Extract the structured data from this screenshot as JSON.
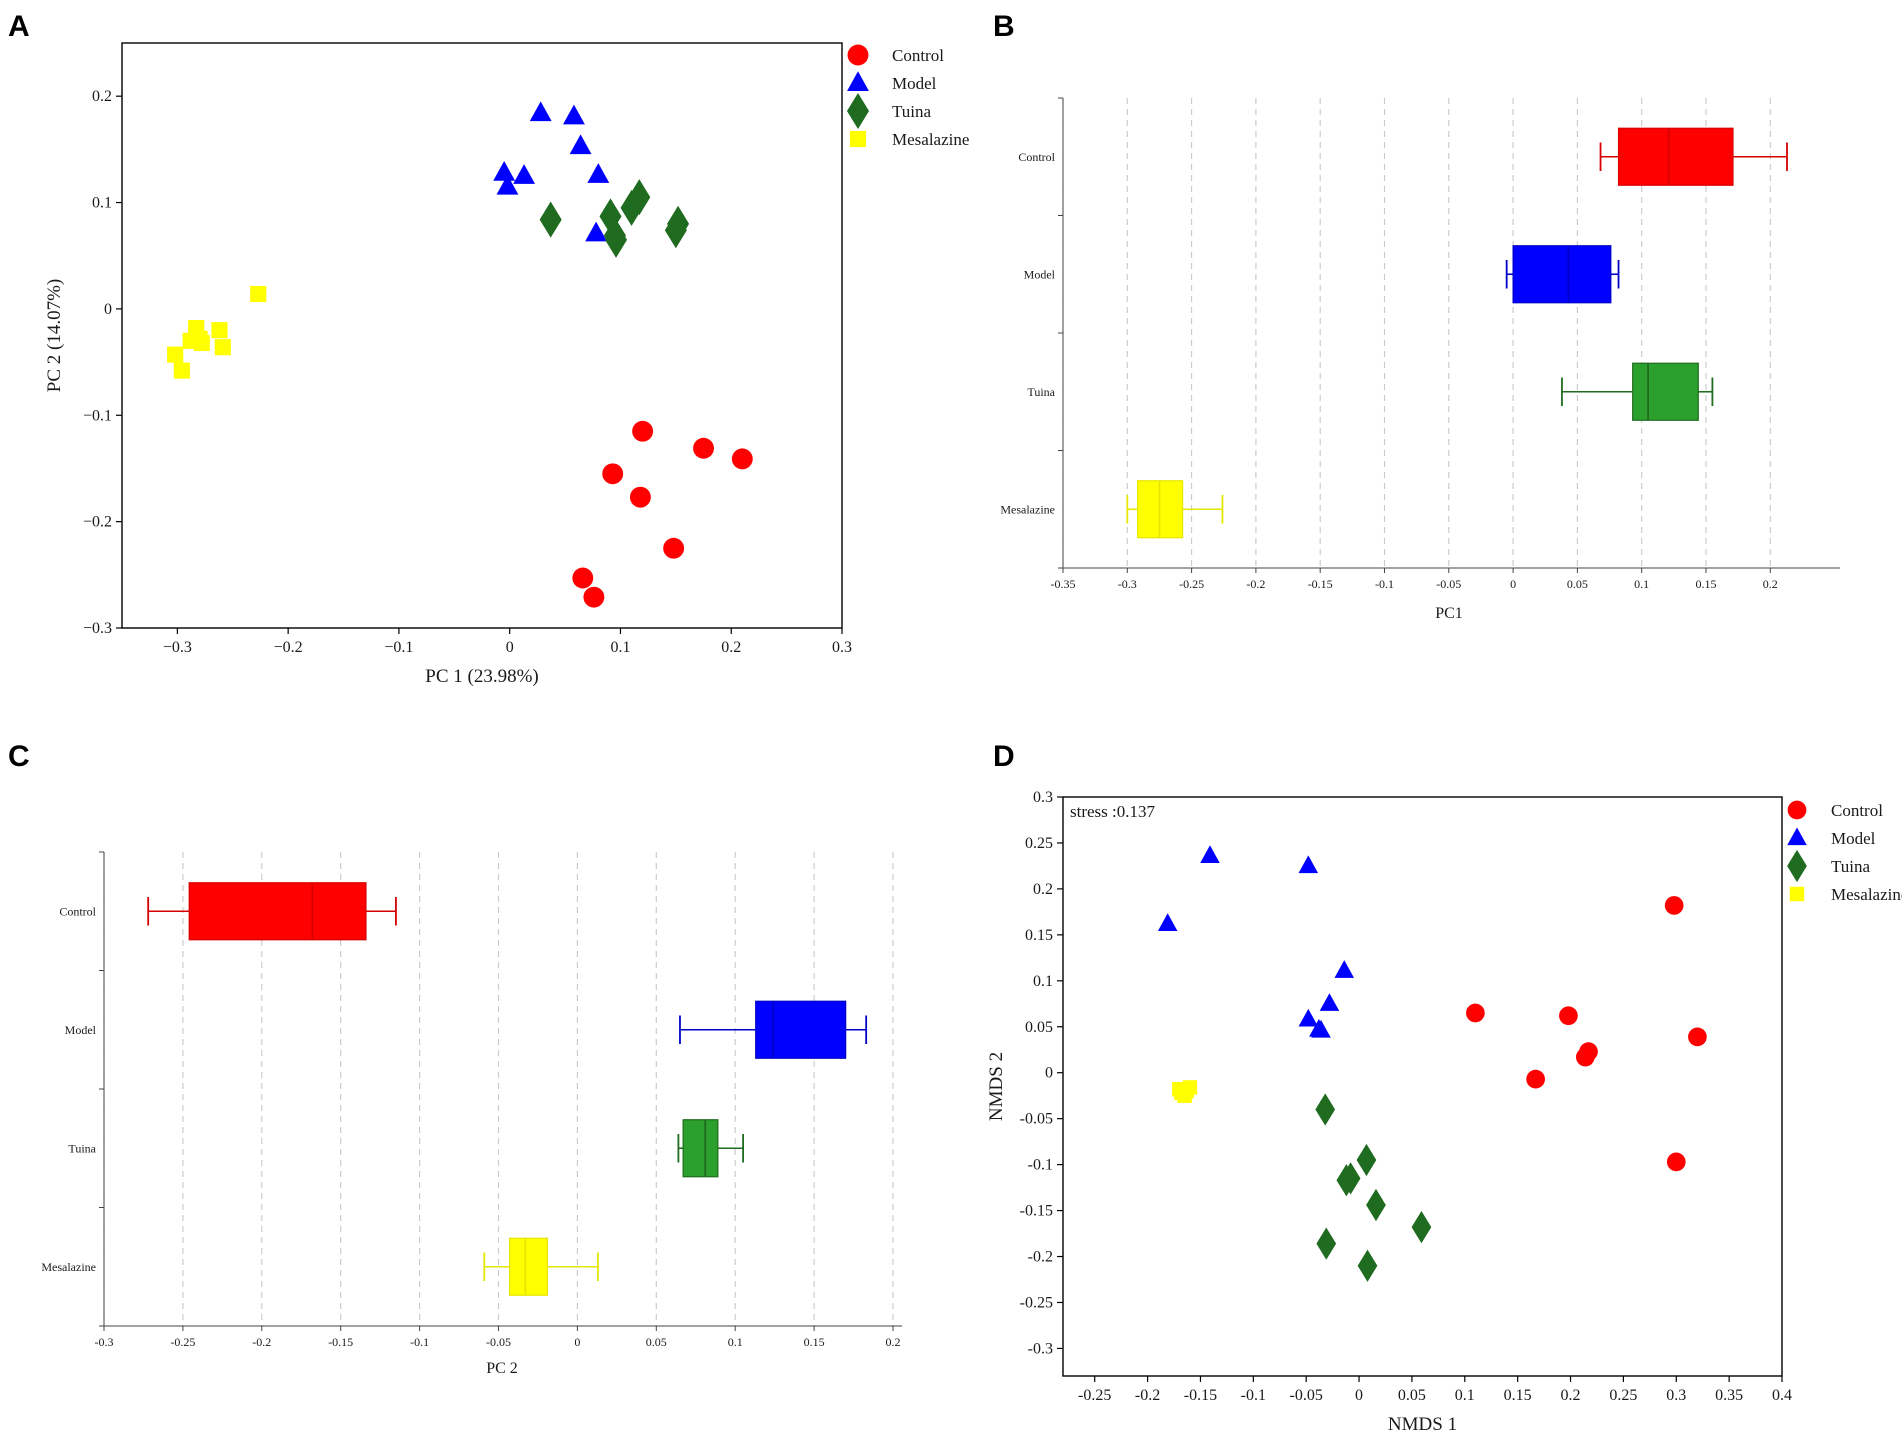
{
  "panels": {
    "A": "A",
    "B": "B",
    "C": "C",
    "D": "D"
  },
  "colors": {
    "Control": "#ff0000",
    "Model": "#0000ff",
    "Tuina": "#1f6b1f",
    "Mesalazine": "#ffff00",
    "box_Tuina": "#2ca02c"
  },
  "legend": [
    "Control",
    "Model",
    "Tuina",
    "Mesalazine"
  ],
  "chart_data": [
    {
      "id": "A",
      "type": "scatter",
      "title": "",
      "xlabel": "PC 1 (23.98%)",
      "ylabel": "PC 2 (14.07%)",
      "xlim": [
        -0.35,
        0.3
      ],
      "ylim": [
        -0.3,
        0.25
      ],
      "xticks": [
        -0.3,
        -0.2,
        -0.1,
        0,
        0.1,
        0.2,
        0.3
      ],
      "xtick_labels": [
        "−0.3",
        "−0.2",
        "−0.1",
        "0",
        "0.1",
        "0.2",
        "0.3"
      ],
      "yticks": [
        -0.3,
        -0.2,
        -0.1,
        0,
        0.1,
        0.2
      ],
      "ytick_labels": [
        "−0.3",
        "−0.2",
        "−0.1",
        "0",
        "0.1",
        "0.2"
      ],
      "legend": [
        "Control",
        "Model",
        "Tuina",
        "Mesalazine"
      ],
      "series": [
        {
          "name": "Control",
          "marker": "circle",
          "x": [
            0.12,
            0.175,
            0.21,
            0.093,
            0.118,
            0.148,
            0.066,
            0.076
          ],
          "y": [
            -0.115,
            -0.131,
            -0.141,
            -0.155,
            -0.177,
            -0.225,
            -0.253,
            -0.271
          ]
        },
        {
          "name": "Model",
          "marker": "triangle",
          "x": [
            0.028,
            0.058,
            0.064,
            -0.005,
            0.013,
            0.08,
            -0.002,
            0.078
          ],
          "y": [
            0.184,
            0.181,
            0.153,
            0.128,
            0.125,
            0.126,
            0.115,
            0.071
          ]
        },
        {
          "name": "Tuina",
          "marker": "diamond",
          "x": [
            0.037,
            0.091,
            0.095,
            0.096,
            0.11,
            0.117,
            0.15,
            0.152
          ],
          "y": [
            0.084,
            0.087,
            0.069,
            0.065,
            0.095,
            0.105,
            0.074,
            0.08
          ]
        },
        {
          "name": "Mesalazine",
          "marker": "square",
          "x": [
            -0.227,
            -0.302,
            -0.296,
            -0.288,
            -0.283,
            -0.278,
            -0.262,
            -0.259,
            -0.28
          ],
          "y": [
            0.014,
            -0.043,
            -0.058,
            -0.03,
            -0.018,
            -0.032,
            -0.02,
            -0.036,
            -0.028
          ]
        }
      ]
    },
    {
      "id": "B",
      "type": "box",
      "orientation": "horizontal",
      "xlabel": "PC1",
      "ylabel": "",
      "xlim": [
        -0.35,
        0.22
      ],
      "xticks": [
        -0.35,
        -0.3,
        -0.25,
        -0.2,
        -0.15,
        -0.1,
        -0.05,
        0,
        0.05,
        0.1,
        0.15,
        0.2
      ],
      "xtick_labels": [
        "-0.35",
        "-0.3",
        "-0.25",
        "-0.2",
        "-0.15",
        "-0.1",
        "-0.05",
        "0",
        "0.05",
        "0.1",
        "0.15",
        "0.2"
      ],
      "grid": true,
      "categories": [
        "Control",
        "Model",
        "Tuina",
        "Mesalazine"
      ],
      "boxes": [
        {
          "name": "Control",
          "min": 0.068,
          "q1": 0.082,
          "median": 0.121,
          "q3": 0.171,
          "max": 0.213
        },
        {
          "name": "Model",
          "min": -0.005,
          "q1": 0.0,
          "median": 0.043,
          "q3": 0.076,
          "max": 0.082
        },
        {
          "name": "Tuina",
          "min": 0.038,
          "q1": 0.093,
          "median": 0.105,
          "q3": 0.144,
          "max": 0.155
        },
        {
          "name": "Mesalazine",
          "min": -0.3,
          "q1": -0.292,
          "median": -0.275,
          "q3": -0.257,
          "max": -0.226
        }
      ]
    },
    {
      "id": "C",
      "type": "box",
      "orientation": "horizontal",
      "xlabel": "PC 2",
      "ylabel": "",
      "xlim": [
        -0.3,
        0.2
      ],
      "xticks": [
        -0.3,
        -0.25,
        -0.2,
        -0.15,
        -0.1,
        -0.05,
        0,
        0.05,
        0.1,
        0.15,
        0.2
      ],
      "xtick_labels": [
        "-0.3",
        "-0.25",
        "-0.2",
        "-0.15",
        "-0.1",
        "-0.05",
        "0",
        "0.05",
        "0.1",
        "0.15",
        "0.2"
      ],
      "grid": true,
      "categories": [
        "Control",
        "Model",
        "Tuina",
        "Mesalazine"
      ],
      "boxes": [
        {
          "name": "Control",
          "min": -0.272,
          "q1": -0.246,
          "median": -0.168,
          "q3": -0.134,
          "max": -0.115
        },
        {
          "name": "Model",
          "min": 0.065,
          "q1": 0.113,
          "median": 0.124,
          "q3": 0.17,
          "max": 0.183
        },
        {
          "name": "Tuina",
          "min": 0.064,
          "q1": 0.067,
          "median": 0.081,
          "q3": 0.089,
          "max": 0.105
        },
        {
          "name": "Mesalazine",
          "min": -0.059,
          "q1": -0.043,
          "median": -0.033,
          "q3": -0.019,
          "max": 0.013
        }
      ]
    },
    {
      "id": "D",
      "type": "scatter",
      "xlabel": "NMDS 1",
      "ylabel": "NMDS 2",
      "annotation": "stress :0.137",
      "xlim": [
        -0.28,
        0.4
      ],
      "ylim": [
        -0.33,
        0.3
      ],
      "xticks": [
        -0.25,
        -0.2,
        -0.15,
        -0.1,
        -0.05,
        0,
        0.05,
        0.1,
        0.15,
        0.2,
        0.25,
        0.3,
        0.35,
        0.4
      ],
      "xtick_labels": [
        "-0.25",
        "-0.2",
        "-0.15",
        "-0.1",
        "-0.05",
        "0",
        "0.05",
        "0.1",
        "0.15",
        "0.2",
        "0.25",
        "0.3",
        "0.35",
        "0.4"
      ],
      "yticks": [
        -0.3,
        -0.25,
        -0.2,
        -0.15,
        -0.1,
        -0.05,
        0,
        0.05,
        0.1,
        0.15,
        0.2,
        0.25,
        0.3
      ],
      "ytick_labels": [
        "-0.3",
        "-0.25",
        "-0.2",
        "-0.15",
        "-0.1",
        "-0.05",
        "0",
        "0.05",
        "0.1",
        "0.15",
        "0.2",
        "0.25",
        "0.3"
      ],
      "legend": [
        "Control",
        "Model",
        "Tuina",
        "Mesalazine"
      ],
      "series": [
        {
          "name": "Control",
          "marker": "circle",
          "x": [
            0.298,
            0.11,
            0.198,
            0.32,
            0.217,
            0.214,
            0.167,
            0.3
          ],
          "y": [
            0.182,
            0.065,
            0.062,
            0.039,
            0.023,
            0.017,
            -0.007,
            -0.097
          ]
        },
        {
          "name": "Model",
          "marker": "triangle",
          "x": [
            -0.141,
            -0.048,
            -0.181,
            -0.014,
            -0.028,
            -0.048,
            -0.038,
            -0.036
          ],
          "y": [
            0.236,
            0.225,
            0.162,
            0.111,
            0.075,
            0.058,
            0.047,
            0.046
          ]
        },
        {
          "name": "Tuina",
          "marker": "diamond",
          "x": [
            -0.032,
            0.007,
            -0.012,
            -0.008,
            0.016,
            0.059,
            -0.031,
            0.008
          ],
          "y": [
            -0.04,
            -0.095,
            -0.117,
            -0.115,
            -0.144,
            -0.168,
            -0.186,
            -0.21
          ]
        },
        {
          "name": "Mesalazine",
          "marker": "square",
          "x": [
            -0.17,
            -0.165,
            -0.16,
            -0.168,
            -0.163
          ],
          "y": [
            -0.018,
            -0.025,
            -0.016,
            -0.022,
            -0.02
          ]
        }
      ]
    }
  ]
}
